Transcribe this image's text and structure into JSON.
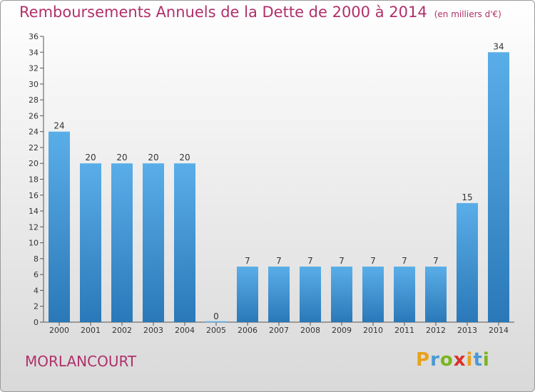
{
  "title": "Remboursements Annuels de la Dette de 2000 à 2014",
  "unit_note": "(en milliers d'€)",
  "locality": "MORLANCOURT",
  "logo_text": "Proxiti",
  "colors": {
    "bar_top": "#5aaee8",
    "bar_bottom": "#2a78b8",
    "title": "#b0306a"
  },
  "chart_data": {
    "type": "bar",
    "categories": [
      "2000",
      "2001",
      "2002",
      "2003",
      "2004",
      "2005",
      "2006",
      "2007",
      "2008",
      "2009",
      "2010",
      "2011",
      "2012",
      "2013",
      "2014"
    ],
    "values": [
      24,
      20,
      20,
      20,
      20,
      0,
      7,
      7,
      7,
      7,
      7,
      7,
      7,
      15,
      34
    ],
    "ylim": [
      0,
      36
    ],
    "yticks": [
      0,
      2,
      4,
      6,
      8,
      10,
      12,
      14,
      16,
      18,
      20,
      22,
      24,
      26,
      28,
      30,
      32,
      34,
      36
    ],
    "grid": false,
    "data_labels": true
  }
}
